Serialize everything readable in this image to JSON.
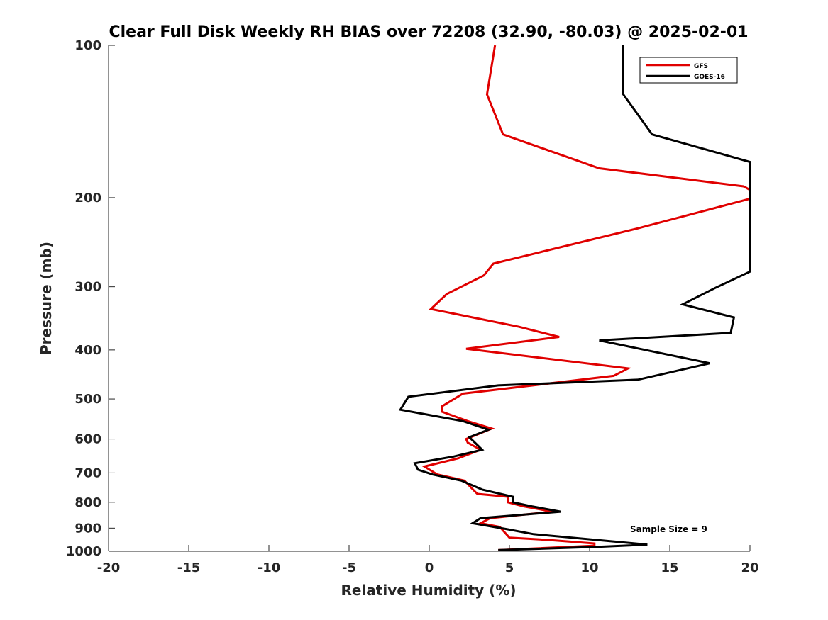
{
  "chart_data": {
    "type": "line",
    "title": "Clear Full Disk Weekly RH BIAS over 72208 (32.90, -80.03) @ 2025-02-01",
    "xlabel": "Relative Humidity (%)",
    "ylabel": "Pressure (mb)",
    "xlim": [
      -20,
      20
    ],
    "ylim": [
      100,
      1000
    ],
    "y_scale": "log",
    "y_reversed": true,
    "grid": false,
    "legend_position": "top-right",
    "x_ticks": [
      "-20",
      "-15",
      "-10",
      "-5",
      "0",
      "5",
      "10",
      "15",
      "20"
    ],
    "y_ticks": [
      "100",
      "200",
      "300",
      "400",
      "500",
      "600",
      "700",
      "800",
      "900",
      "1000"
    ],
    "annotation": "Sample Size = 9",
    "series": [
      {
        "name": "GFS",
        "color": "#e00000",
        "points": [
          [
            4.1,
            100
          ],
          [
            3.6,
            125
          ],
          [
            4.6,
            150
          ],
          [
            10.6,
            175
          ],
          [
            19.6,
            190
          ],
          [
            20,
            193
          ],
          [
            20,
            201
          ],
          [
            13,
            230
          ],
          [
            4,
            270
          ],
          [
            3.4,
            285
          ],
          [
            1.1,
            310
          ],
          [
            0.1,
            332
          ],
          [
            5.6,
            360
          ],
          [
            8.1,
            377
          ],
          [
            2.3,
            398
          ],
          [
            12.4,
            435
          ],
          [
            11.5,
            450
          ],
          [
            2.1,
            488
          ],
          [
            0.8,
            517
          ],
          [
            0.8,
            530
          ],
          [
            2.4,
            553
          ],
          [
            3.9,
            572
          ],
          [
            2.3,
            600
          ],
          [
            2.4,
            610
          ],
          [
            3.2,
            630
          ],
          [
            1.8,
            655
          ],
          [
            -0.3,
            680
          ],
          [
            0.5,
            705
          ],
          [
            2.2,
            725
          ],
          [
            2.6,
            748
          ],
          [
            3,
            770
          ],
          [
            4.9,
            780
          ],
          [
            4.9,
            800
          ],
          [
            5.9,
            815
          ],
          [
            7.7,
            835
          ],
          [
            3.8,
            860
          ],
          [
            3.2,
            880
          ],
          [
            4.4,
            895
          ],
          [
            5,
            940
          ],
          [
            7.5,
            950
          ],
          [
            10.3,
            965
          ],
          [
            10.3,
            975
          ],
          [
            4.3,
            995
          ]
        ]
      },
      {
        "name": "GOES-16",
        "color": "#000000",
        "points": [
          [
            12.1,
            100
          ],
          [
            12.1,
            125
          ],
          [
            13.9,
            150
          ],
          [
            20,
            170
          ],
          [
            20,
            280
          ],
          [
            17.8,
            302
          ],
          [
            15.8,
            325
          ],
          [
            19,
            345
          ],
          [
            18.8,
            370
          ],
          [
            10.6,
            383
          ],
          [
            17.5,
            425
          ],
          [
            13,
            458
          ],
          [
            4.3,
            470
          ],
          [
            -1.3,
            495
          ],
          [
            -1.8,
            525
          ],
          [
            2.1,
            553
          ],
          [
            3.7,
            575
          ],
          [
            2.5,
            595
          ],
          [
            3.3,
            630
          ],
          [
            1.5,
            650
          ],
          [
            -0.9,
            670
          ],
          [
            -0.7,
            690
          ],
          [
            0.2,
            705
          ],
          [
            2,
            725
          ],
          [
            3.3,
            755
          ],
          [
            5.2,
            780
          ],
          [
            5.2,
            800
          ],
          [
            6.4,
            815
          ],
          [
            8.2,
            835
          ],
          [
            3.2,
            860
          ],
          [
            2.7,
            880
          ],
          [
            4.9,
            905
          ],
          [
            6.5,
            925
          ],
          [
            10.5,
            950
          ],
          [
            13.6,
            970
          ],
          [
            10.5,
            980
          ],
          [
            4.3,
            995
          ]
        ]
      }
    ]
  }
}
